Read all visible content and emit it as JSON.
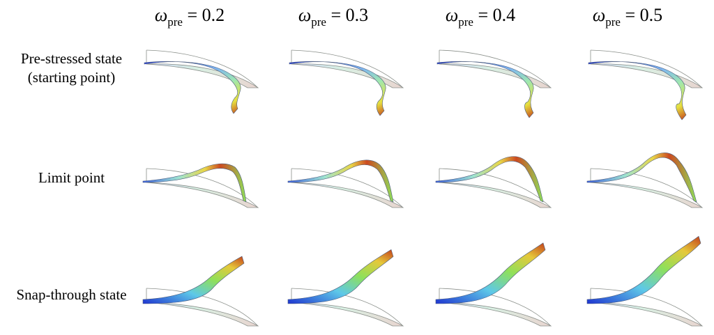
{
  "columns": [
    {
      "symbol": "ω",
      "subscript": "pre",
      "eq": "= 0.2"
    },
    {
      "symbol": "ω",
      "subscript": "pre",
      "eq": "= 0.3"
    },
    {
      "symbol": "ω",
      "subscript": "pre",
      "eq": "= 0.4"
    },
    {
      "symbol": "ω",
      "subscript": "pre",
      "eq": "= 0.5"
    }
  ],
  "rows": [
    {
      "line1": "Pre-stressed state",
      "line2": "(starting point)"
    },
    {
      "line1": "Limit point",
      "line2": ""
    },
    {
      "line1": "Snap-through state",
      "line2": ""
    }
  ],
  "colors": {
    "shell_low": "#2a3fd6",
    "shell_mid": "#58d8e0",
    "shell_green": "#8fe05a",
    "shell_yellow": "#e6e040",
    "shell_high": "#c4401a",
    "ghost_fill": "#d7ecd9",
    "ghost_edge": "#8a8f8a"
  }
}
